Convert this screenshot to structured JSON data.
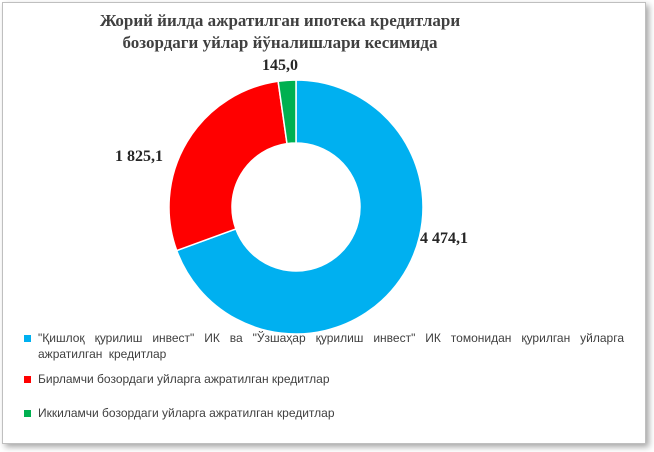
{
  "chart_data": {
    "type": "pie",
    "subtype": "donut",
    "title": "Жорий йилда ажратилган ипотека кредитлари бозордаги уйлар йўналишлари кесимида",
    "title_lines": [
      "Жорий йилда ажратилган ипотека кредитлари",
      "бозордаги уйлар йўналишлари кесимида"
    ],
    "categories": [
      "\"Қишлоқ қурилиш инвест\" ИК ва \"Ўзшаҳар қурилиш инвест\" ИК томонидан қурилган уйларга ажратилган кредитлар",
      "Бирламчи бозордаги уйларга ажратилган кредитлар",
      "Иккиламчи бозордаги уйларга ажратилган кредитлар"
    ],
    "values": [
      4474.1,
      1825.1,
      145.0
    ],
    "value_labels": [
      "4 474,1",
      "1 825,1",
      "145,0"
    ],
    "colors": [
      "#00b0f0",
      "#ff0000",
      "#00b050"
    ],
    "legend_position": "bottom"
  }
}
